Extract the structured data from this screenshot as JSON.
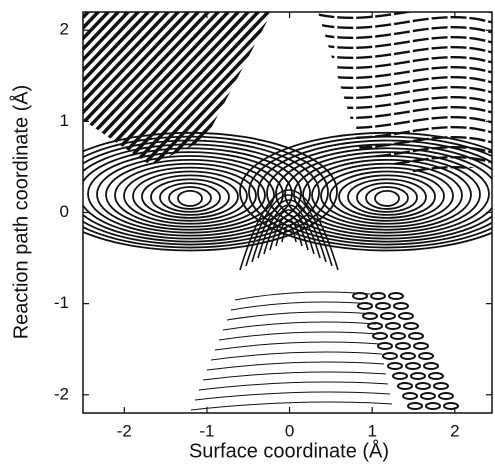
{
  "chart_data": {
    "type": "contour",
    "xlabel": "Surface coordinate (Å)",
    "ylabel": "Reaction path coordinate (Å)",
    "xlim": [
      -2.5,
      2.45
    ],
    "ylim": [
      -2.2,
      2.2
    ],
    "xticks": [
      -2,
      -1,
      0,
      1,
      2
    ],
    "yticks": [
      -2,
      -1,
      0,
      1,
      2
    ],
    "color": "#111111"
  }
}
